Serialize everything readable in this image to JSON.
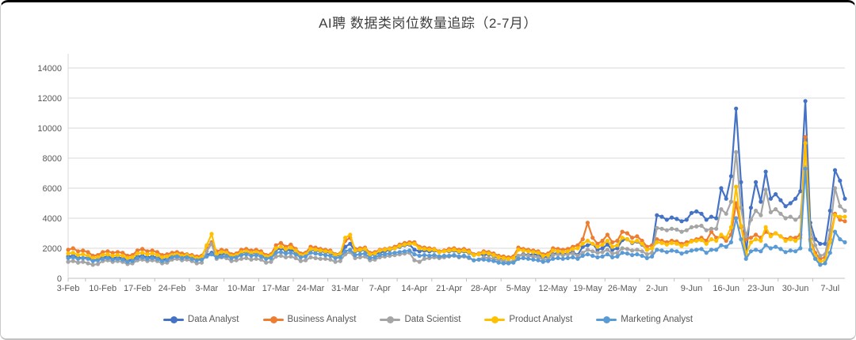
{
  "chart_data": {
    "type": "line",
    "title": "AI聘 数据类岗位数量追踪（2-7月）",
    "xlabel": "",
    "ylabel": "",
    "ylim": [
      0,
      14000
    ],
    "y_tick_step": 2000,
    "y_tick_labels": [
      "0",
      "2000",
      "4000",
      "6000",
      "8000",
      "10000",
      "12000",
      "14000"
    ],
    "x_tick_labels": [
      "3-Feb",
      "10-Feb",
      "17-Feb",
      "24-Feb",
      "3-Mar",
      "10-Mar",
      "17-Mar",
      "24-Mar",
      "31-Mar",
      "7-Apr",
      "14-Apr",
      "21-Apr",
      "28-Apr",
      "5-May",
      "12-May",
      "19-May",
      "26-May",
      "2-Jun",
      "9-Jun",
      "16-Jun",
      "23-Jun",
      "30-Jun",
      "7-Jul"
    ],
    "x_tick_interval_points": 7,
    "points_are_daily": true,
    "date_range": "3-Feb to 10-Jul",
    "grid": "horizontal",
    "legend_position": "bottom",
    "axis_color": "#bfbfbf",
    "grid_color": "#d9d9d9",
    "tick_label_color": "#595959",
    "series": [
      {
        "name": "Data Analyst",
        "color": "#4472C4",
        "values": [
          1450,
          1500,
          1400,
          1350,
          1400,
          1200,
          1250,
          1400,
          1450,
          1350,
          1400,
          1350,
          1200,
          1250,
          1450,
          1500,
          1400,
          1450,
          1400,
          1250,
          1300,
          1500,
          1550,
          1450,
          1500,
          1400,
          1300,
          1350,
          1550,
          1700,
          1500,
          1600,
          1650,
          1450,
          1500,
          1700,
          1750,
          1650,
          1700,
          1600,
          1400,
          1500,
          1900,
          2000,
          1850,
          1900,
          1750,
          1550,
          1600,
          1900,
          1850,
          1800,
          1750,
          1700,
          1500,
          1550,
          2100,
          2300,
          1800,
          1850,
          1900,
          1550,
          1600,
          1700,
          1800,
          1900,
          2000,
          2100,
          2200,
          2250,
          1900,
          1800,
          1850,
          1800,
          1850,
          1750,
          1800,
          1800,
          1850,
          1750,
          1800,
          1700,
          1550,
          1600,
          1550,
          1600,
          1500,
          1350,
          1300,
          1300,
          1350,
          1500,
          1600,
          1550,
          1600,
          1550,
          1400,
          1450,
          1600,
          1700,
          1600,
          1650,
          1750,
          1550,
          2100,
          2200,
          2300,
          1900,
          2000,
          2250,
          1900,
          2000,
          2550,
          2600,
          2350,
          2450,
          2250,
          1900,
          2000,
          4200,
          4100,
          3900,
          4050,
          3950,
          3800,
          3900,
          4350,
          4450,
          4300,
          3900,
          4100,
          4000,
          6000,
          5300,
          6800,
          11300,
          6400,
          1600,
          4700,
          6400,
          5100,
          7100,
          5300,
          5600,
          5200,
          4800,
          5000,
          5300,
          5800,
          11800,
          3700,
          2600,
          2300,
          2300,
          4500,
          7200,
          6500,
          5300
        ]
      },
      {
        "name": "Business Analyst",
        "color": "#ED7D31",
        "values": [
          1900,
          2000,
          1800,
          1850,
          1750,
          1500,
          1550,
          1750,
          1800,
          1700,
          1750,
          1700,
          1500,
          1550,
          1850,
          1950,
          1800,
          1850,
          1750,
          1550,
          1600,
          1700,
          1750,
          1650,
          1600,
          1550,
          1450,
          1500,
          2100,
          2400,
          1800,
          1900,
          1850,
          1600,
          1650,
          1900,
          1950,
          1850,
          1900,
          1800,
          1550,
          1600,
          2200,
          2350,
          2100,
          2250,
          1950,
          1650,
          1700,
          2100,
          2050,
          1950,
          1900,
          1850,
          1600,
          1650,
          2500,
          2700,
          1950,
          2000,
          2050,
          1700,
          1750,
          1900,
          1950,
          2000,
          2100,
          2250,
          2350,
          2400,
          2400,
          2100,
          2050,
          2000,
          1950,
          1800,
          1850,
          1950,
          2000,
          1900,
          1950,
          1850,
          1600,
          1650,
          1800,
          1750,
          1650,
          1500,
          1450,
          1400,
          1450,
          2050,
          1950,
          1900,
          1850,
          1800,
          1600,
          1650,
          2000,
          1950,
          1900,
          1950,
          2100,
          2200,
          2600,
          3700,
          2700,
          2300,
          2500,
          2900,
          2400,
          2500,
          3100,
          3000,
          2700,
          2800,
          2500,
          2100,
          2200,
          2600,
          2500,
          2400,
          2500,
          2450,
          2300,
          2400,
          2500,
          2600,
          2700,
          2500,
          3100,
          2700,
          2800,
          2500,
          2900,
          5000,
          3400,
          2600,
          2700,
          2900,
          2700,
          3100,
          2900,
          3000,
          2800,
          2600,
          2700,
          2700,
          2900,
          9400,
          2600,
          1700,
          1300,
          1400,
          2600,
          4300,
          3900,
          3800
        ]
      },
      {
        "name": "Data Scientist",
        "color": "#A5A5A5",
        "values": [
          1100,
          1150,
          1050,
          1100,
          1000,
          900,
          950,
          1150,
          1200,
          1100,
          1150,
          1100,
          950,
          1000,
          1200,
          1250,
          1150,
          1200,
          1150,
          1000,
          1050,
          1250,
          1300,
          1200,
          1250,
          1150,
          1000,
          1050,
          1800,
          2300,
          1300,
          1400,
          1350,
          1150,
          1200,
          1300,
          1350,
          1250,
          1300,
          1250,
          1050,
          1100,
          1450,
          1500,
          1400,
          1450,
          1350,
          1150,
          1200,
          1400,
          1350,
          1300,
          1300,
          1250,
          1100,
          1150,
          1600,
          1750,
          1350,
          1400,
          1450,
          1200,
          1250,
          1400,
          1450,
          1500,
          1550,
          1600,
          1650,
          1700,
          1200,
          1100,
          1300,
          1350,
          1400,
          1350,
          1400,
          1450,
          1500,
          1400,
          1450,
          1350,
          1200,
          1250,
          1400,
          1350,
          1300,
          1200,
          1150,
          1100,
          1150,
          1500,
          1550,
          1500,
          1450,
          1400,
          1250,
          1300,
          1550,
          1600,
          1550,
          1600,
          1650,
          1500,
          1700,
          1900,
          1800,
          1700,
          1750,
          1900,
          1650,
          1700,
          2000,
          1950,
          1850,
          1900,
          1800,
          1600,
          1700,
          3350,
          3300,
          3200,
          3300,
          3250,
          3100,
          3200,
          3400,
          3450,
          3500,
          3200,
          3300,
          3300,
          4600,
          4300,
          5100,
          8400,
          4700,
          2800,
          3900,
          4500,
          4200,
          5900,
          4400,
          4600,
          4300,
          4000,
          4100,
          3900,
          4100,
          7400,
          3200,
          2200,
          1500,
          1600,
          3200,
          6000,
          4800,
          4500
        ]
      },
      {
        "name": "Product Analyst",
        "color": "#FFC000",
        "values": [
          1650,
          1700,
          1550,
          1600,
          1500,
          1350,
          1400,
          1550,
          1600,
          1500,
          1550,
          1500,
          1350,
          1400,
          1650,
          1700,
          1600,
          1650,
          1550,
          1400,
          1450,
          1550,
          1600,
          1500,
          1550,
          1450,
          1350,
          1400,
          2200,
          2950,
          1600,
          1750,
          1700,
          1500,
          1550,
          1750,
          1800,
          1700,
          1750,
          1650,
          1450,
          1500,
          2000,
          2100,
          1950,
          2050,
          1850,
          1550,
          1600,
          1950,
          1900,
          1850,
          1800,
          1750,
          1550,
          1600,
          2700,
          2900,
          1850,
          1900,
          1950,
          1600,
          1650,
          1850,
          1900,
          1950,
          2000,
          2150,
          2250,
          2300,
          2300,
          2000,
          1950,
          1900,
          1900,
          1750,
          1800,
          1850,
          1900,
          1800,
          1850,
          1750,
          1550,
          1600,
          1700,
          1650,
          1550,
          1400,
          1350,
          1300,
          1350,
          1900,
          1850,
          1800,
          1750,
          1700,
          1500,
          1550,
          1850,
          1800,
          1750,
          1800,
          1950,
          2000,
          2300,
          2500,
          2300,
          2100,
          2250,
          2500,
          2100,
          2200,
          2700,
          2600,
          2400,
          2500,
          2300,
          1900,
          2000,
          2400,
          2350,
          2250,
          2350,
          2300,
          2150,
          2250,
          2450,
          2500,
          2550,
          2300,
          2600,
          2500,
          2900,
          2700,
          3400,
          6100,
          3500,
          1600,
          2400,
          2600,
          2500,
          3400,
          2800,
          3000,
          2800,
          2500,
          2600,
          2500,
          2700,
          9000,
          2500,
          1500,
          1100,
          1200,
          2400,
          4200,
          4100,
          4100
        ]
      },
      {
        "name": "Marketing Analyst",
        "color": "#5B9BD5",
        "values": [
          1350,
          1400,
          1300,
          1350,
          1300,
          1150,
          1200,
          1300,
          1350,
          1250,
          1300,
          1250,
          1100,
          1150,
          1350,
          1400,
          1300,
          1350,
          1300,
          1150,
          1200,
          1400,
          1450,
          1350,
          1400,
          1300,
          1200,
          1250,
          1450,
          1600,
          1400,
          1450,
          1500,
          1350,
          1400,
          1550,
          1600,
          1500,
          1550,
          1450,
          1300,
          1350,
          1700,
          1750,
          1650,
          1700,
          1600,
          1400,
          1450,
          1700,
          1650,
          1600,
          1550,
          1500,
          1350,
          1400,
          1800,
          1900,
          1550,
          1600,
          1650,
          1350,
          1400,
          1550,
          1600,
          1650,
          1700,
          1750,
          1800,
          1850,
          1600,
          1500,
          1550,
          1500,
          1550,
          1450,
          1500,
          1500,
          1550,
          1450,
          1500,
          1400,
          1200,
          1250,
          1250,
          1200,
          1150,
          1050,
          1000,
          1000,
          1050,
          1300,
          1350,
          1300,
          1250,
          1200,
          1100,
          1150,
          1300,
          1350,
          1300,
          1350,
          1400,
          1300,
          1500,
          1600,
          1500,
          1400,
          1450,
          1600,
          1400,
          1450,
          1700,
          1650,
          1550,
          1600,
          1500,
          1350,
          1450,
          1900,
          1850,
          1750,
          1850,
          1800,
          1650,
          1750,
          1850,
          1900,
          1950,
          1700,
          1900,
          1900,
          2200,
          2100,
          2400,
          4000,
          2600,
          1300,
          1800,
          1900,
          1800,
          2200,
          2000,
          2100,
          1950,
          1750,
          1850,
          1800,
          2000,
          7300,
          1900,
          1300,
          900,
          1000,
          1700,
          3100,
          2600,
          2400
        ]
      }
    ]
  }
}
